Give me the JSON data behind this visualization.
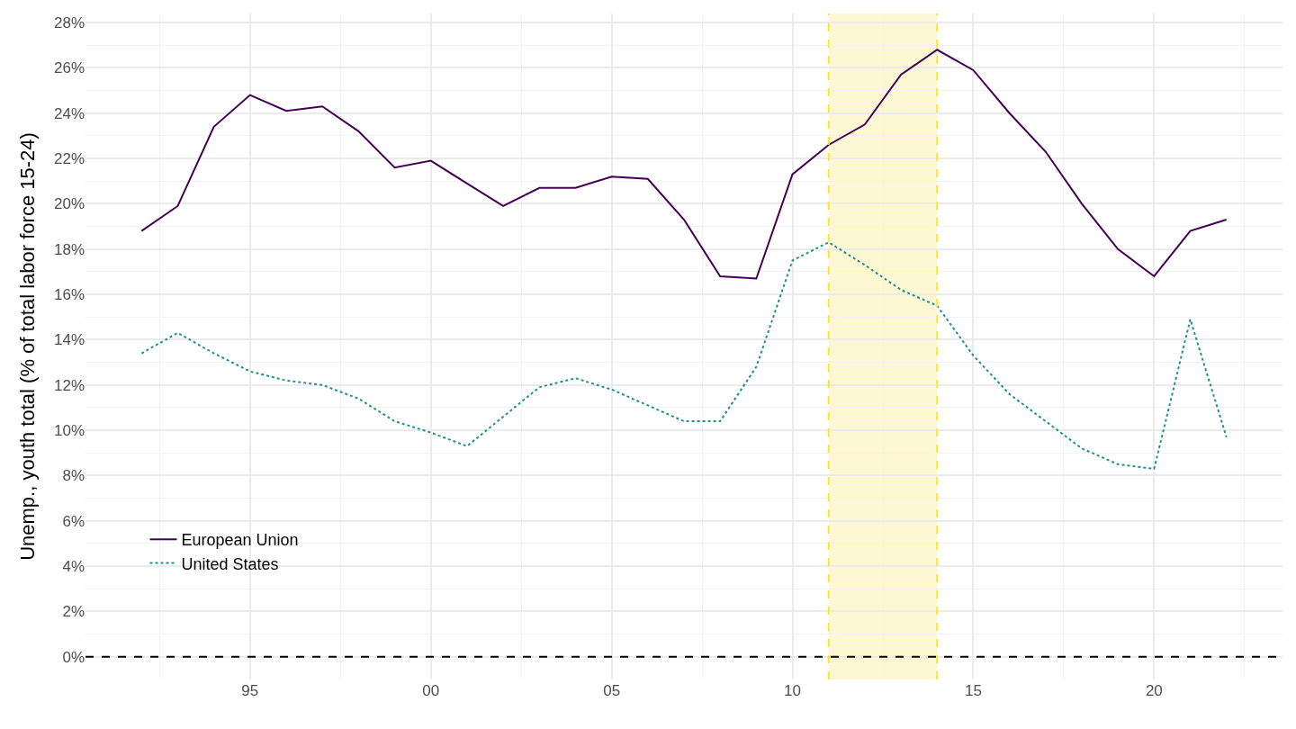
{
  "chart_data": {
    "type": "line",
    "ylabel": "Unemp., youth total (% of total labor force 15-24)",
    "x": [
      1992,
      1993,
      1994,
      1995,
      1996,
      1997,
      1998,
      1999,
      2000,
      2001,
      2002,
      2003,
      2004,
      2005,
      2006,
      2007,
      2008,
      2009,
      2010,
      2011,
      2012,
      2013,
      2014,
      2015,
      2016,
      2017,
      2018,
      2019,
      2020,
      2021,
      2022
    ],
    "series": [
      {
        "name": "European Union",
        "color": "#440154",
        "line_style": "solid",
        "values": [
          18.8,
          19.9,
          23.4,
          24.8,
          24.1,
          24.3,
          23.2,
          21.6,
          21.9,
          20.9,
          19.9,
          20.7,
          20.7,
          21.2,
          21.1,
          19.3,
          16.8,
          16.7,
          21.3,
          22.6,
          23.5,
          25.7,
          26.8,
          25.9,
          24.0,
          22.3,
          20.0,
          18.0,
          16.8,
          18.8,
          19.3
        ]
      },
      {
        "name": "United States",
        "color": "#21908c",
        "line_style": "dotted",
        "values": [
          13.4,
          14.3,
          13.4,
          12.6,
          12.2,
          12.0,
          11.4,
          10.4,
          9.9,
          9.3,
          10.6,
          11.9,
          12.3,
          11.8,
          11.1,
          10.4,
          10.4,
          12.8,
          17.5,
          18.3,
          17.3,
          16.2,
          15.5,
          13.3,
          11.6,
          10.4,
          9.2,
          8.5,
          8.3,
          14.9,
          9.7
        ]
      }
    ],
    "xlim": [
      1990.45,
      2023.55
    ],
    "xticks": [
      {
        "value": 1995,
        "label": "95"
      },
      {
        "value": 2000,
        "label": "00"
      },
      {
        "value": 2005,
        "label": "05"
      },
      {
        "value": 2010,
        "label": "10"
      },
      {
        "value": 2015,
        "label": "15"
      },
      {
        "value": 2020,
        "label": "20"
      }
    ],
    "ylim": [
      -1,
      28.4
    ],
    "yticks": [
      {
        "value": 0,
        "label": "0%"
      },
      {
        "value": 2,
        "label": "2%"
      },
      {
        "value": 4,
        "label": "4%"
      },
      {
        "value": 6,
        "label": "6%"
      },
      {
        "value": 8,
        "label": "8%"
      },
      {
        "value": 10,
        "label": "10%"
      },
      {
        "value": 12,
        "label": "12%"
      },
      {
        "value": 14,
        "label": "14%"
      },
      {
        "value": 16,
        "label": "16%"
      },
      {
        "value": 18,
        "label": "18%"
      },
      {
        "value": 20,
        "label": "20%"
      },
      {
        "value": 22,
        "label": "22%"
      },
      {
        "value": 24,
        "label": "24%"
      },
      {
        "value": 26,
        "label": "26%"
      },
      {
        "value": 28,
        "label": "28%"
      }
    ],
    "bands": [
      {
        "axis": "x",
        "from": 2011,
        "to": 2014,
        "color": "#fdf3c0"
      }
    ],
    "ref_lines": [
      {
        "axis": "y",
        "value": 0,
        "color": "#000000",
        "line_style": "dashed"
      },
      {
        "axis": "x",
        "value": 2011,
        "color": "#fde725",
        "line_style": "dashed"
      },
      {
        "axis": "x",
        "value": 2014,
        "color": "#fde725",
        "line_style": "dashed"
      }
    ],
    "grid": true,
    "legend": "bottom left",
    "marker": "none"
  }
}
